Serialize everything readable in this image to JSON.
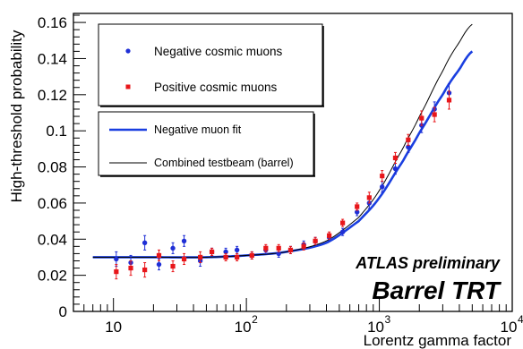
{
  "chart_data": {
    "type": "scatter",
    "title": "",
    "xlabel": "Lorentz gamma factor",
    "ylabel": "High-threshold probability",
    "xscale": "log",
    "xlim": [
      5,
      10000
    ],
    "ylim": [
      0,
      0.165
    ],
    "x_ticks": [
      {
        "value": 10,
        "label": "10"
      },
      {
        "value": 100,
        "label": "10",
        "sup": "2"
      },
      {
        "value": 1000,
        "label": "10",
        "sup": "3"
      },
      {
        "value": 10000,
        "label": "10",
        "sup": "4"
      }
    ],
    "y_ticks": [
      {
        "value": 0,
        "label": "0"
      },
      {
        "value": 0.02,
        "label": "0.02"
      },
      {
        "value": 0.04,
        "label": "0.04"
      },
      {
        "value": 0.06,
        "label": "0.06"
      },
      {
        "value": 0.08,
        "label": "0.08"
      },
      {
        "value": 0.1,
        "label": "0.1"
      },
      {
        "value": 0.12,
        "label": "0.12"
      },
      {
        "value": 0.14,
        "label": "0.14"
      },
      {
        "value": 0.16,
        "label": "0.16"
      }
    ],
    "grid": false,
    "legend_position": "top-left",
    "legend": {
      "markers": [
        {
          "label": "Negative cosmic muons",
          "color": "#1f2fd6",
          "marker": "circle"
        },
        {
          "label": "Positive cosmic muons",
          "color": "#e8161a",
          "marker": "square"
        }
      ],
      "lines": [
        {
          "label": "Negative muon fit",
          "color": "#1a3fe0",
          "width": "thick"
        },
        {
          "label": "Combined testbeam (barrel)",
          "color": "#000000",
          "width": "thin"
        }
      ]
    },
    "annotations": [
      "ATLAS preliminary",
      "Barrel TRT"
    ],
    "series": [
      {
        "name": "Negative cosmic muons",
        "type": "scatter",
        "marker": "circle",
        "color": "#1f2fd6",
        "x": [
          10.5,
          13.5,
          17.2,
          22,
          28,
          34,
          45,
          55,
          70,
          85,
          110,
          140,
          175,
          215,
          270,
          330,
          420,
          530,
          680,
          840,
          1050,
          1320,
          1650,
          2080,
          2600,
          3350
        ],
        "y": [
          0.029,
          0.027,
          0.038,
          0.026,
          0.035,
          0.039,
          0.028,
          0.033,
          0.033,
          0.034,
          0.031,
          0.034,
          0.032,
          0.034,
          0.037,
          0.039,
          0.041,
          0.044,
          0.055,
          0.06,
          0.069,
          0.079,
          0.091,
          0.103,
          0.112,
          0.121
        ],
        "yerr": [
          0.004,
          0.004,
          0.004,
          0.003,
          0.003,
          0.003,
          0.003,
          0.002,
          0.002,
          0.002,
          0.002,
          0.002,
          0.002,
          0.002,
          0.002,
          0.002,
          0.002,
          0.002,
          0.002,
          0.003,
          0.003,
          0.003,
          0.003,
          0.004,
          0.004,
          0.005
        ]
      },
      {
        "name": "Positive cosmic muons",
        "type": "scatter",
        "marker": "square",
        "color": "#e8161a",
        "x": [
          10.5,
          13.5,
          17.2,
          22,
          28,
          34,
          45,
          55,
          70,
          85,
          110,
          140,
          175,
          215,
          270,
          330,
          420,
          530,
          680,
          840,
          1050,
          1320,
          1650,
          2080,
          2600,
          3350
        ],
        "y": [
          0.022,
          0.024,
          0.023,
          0.031,
          0.025,
          0.029,
          0.03,
          0.033,
          0.03,
          0.03,
          0.031,
          0.035,
          0.035,
          0.034,
          0.036,
          0.039,
          0.042,
          0.049,
          0.058,
          0.063,
          0.075,
          0.085,
          0.095,
          0.107,
          0.109,
          0.117
        ],
        "yerr": [
          0.004,
          0.004,
          0.004,
          0.003,
          0.003,
          0.003,
          0.003,
          0.002,
          0.002,
          0.002,
          0.002,
          0.002,
          0.002,
          0.002,
          0.002,
          0.002,
          0.002,
          0.002,
          0.002,
          0.003,
          0.003,
          0.003,
          0.003,
          0.004,
          0.004,
          0.005
        ]
      },
      {
        "name": "Negative muon fit",
        "type": "line",
        "color": "#1a3fe0",
        "x": [
          7,
          10,
          20,
          50,
          100,
          200,
          400,
          700,
          1000,
          1500,
          2000,
          3000,
          4000,
          5000
        ],
        "y": [
          0.03,
          0.03,
          0.03,
          0.03,
          0.031,
          0.033,
          0.038,
          0.05,
          0.063,
          0.083,
          0.099,
          0.12,
          0.134,
          0.144
        ]
      },
      {
        "name": "Combined testbeam (barrel)",
        "type": "line",
        "color": "#000000",
        "x": [
          7,
          10,
          20,
          50,
          100,
          200,
          400,
          700,
          1000,
          1500,
          2000,
          3000,
          4000,
          5000
        ],
        "y": [
          0.03,
          0.03,
          0.03,
          0.03,
          0.031,
          0.033,
          0.039,
          0.052,
          0.067,
          0.09,
          0.108,
          0.133,
          0.149,
          0.159
        ]
      }
    ]
  }
}
